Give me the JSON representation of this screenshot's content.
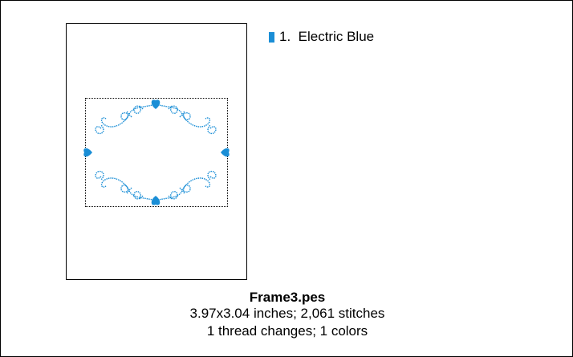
{
  "colors": {
    "thread": "#1a8ed6"
  },
  "legend": {
    "items": [
      {
        "number": "1.",
        "name": "Electric Blue"
      }
    ]
  },
  "info": {
    "filename": "Frame3.pes",
    "dimensions_stitches": "3.97x3.04 inches; 2,061 stitches",
    "thread_colors": "1 thread changes; 1 colors"
  }
}
